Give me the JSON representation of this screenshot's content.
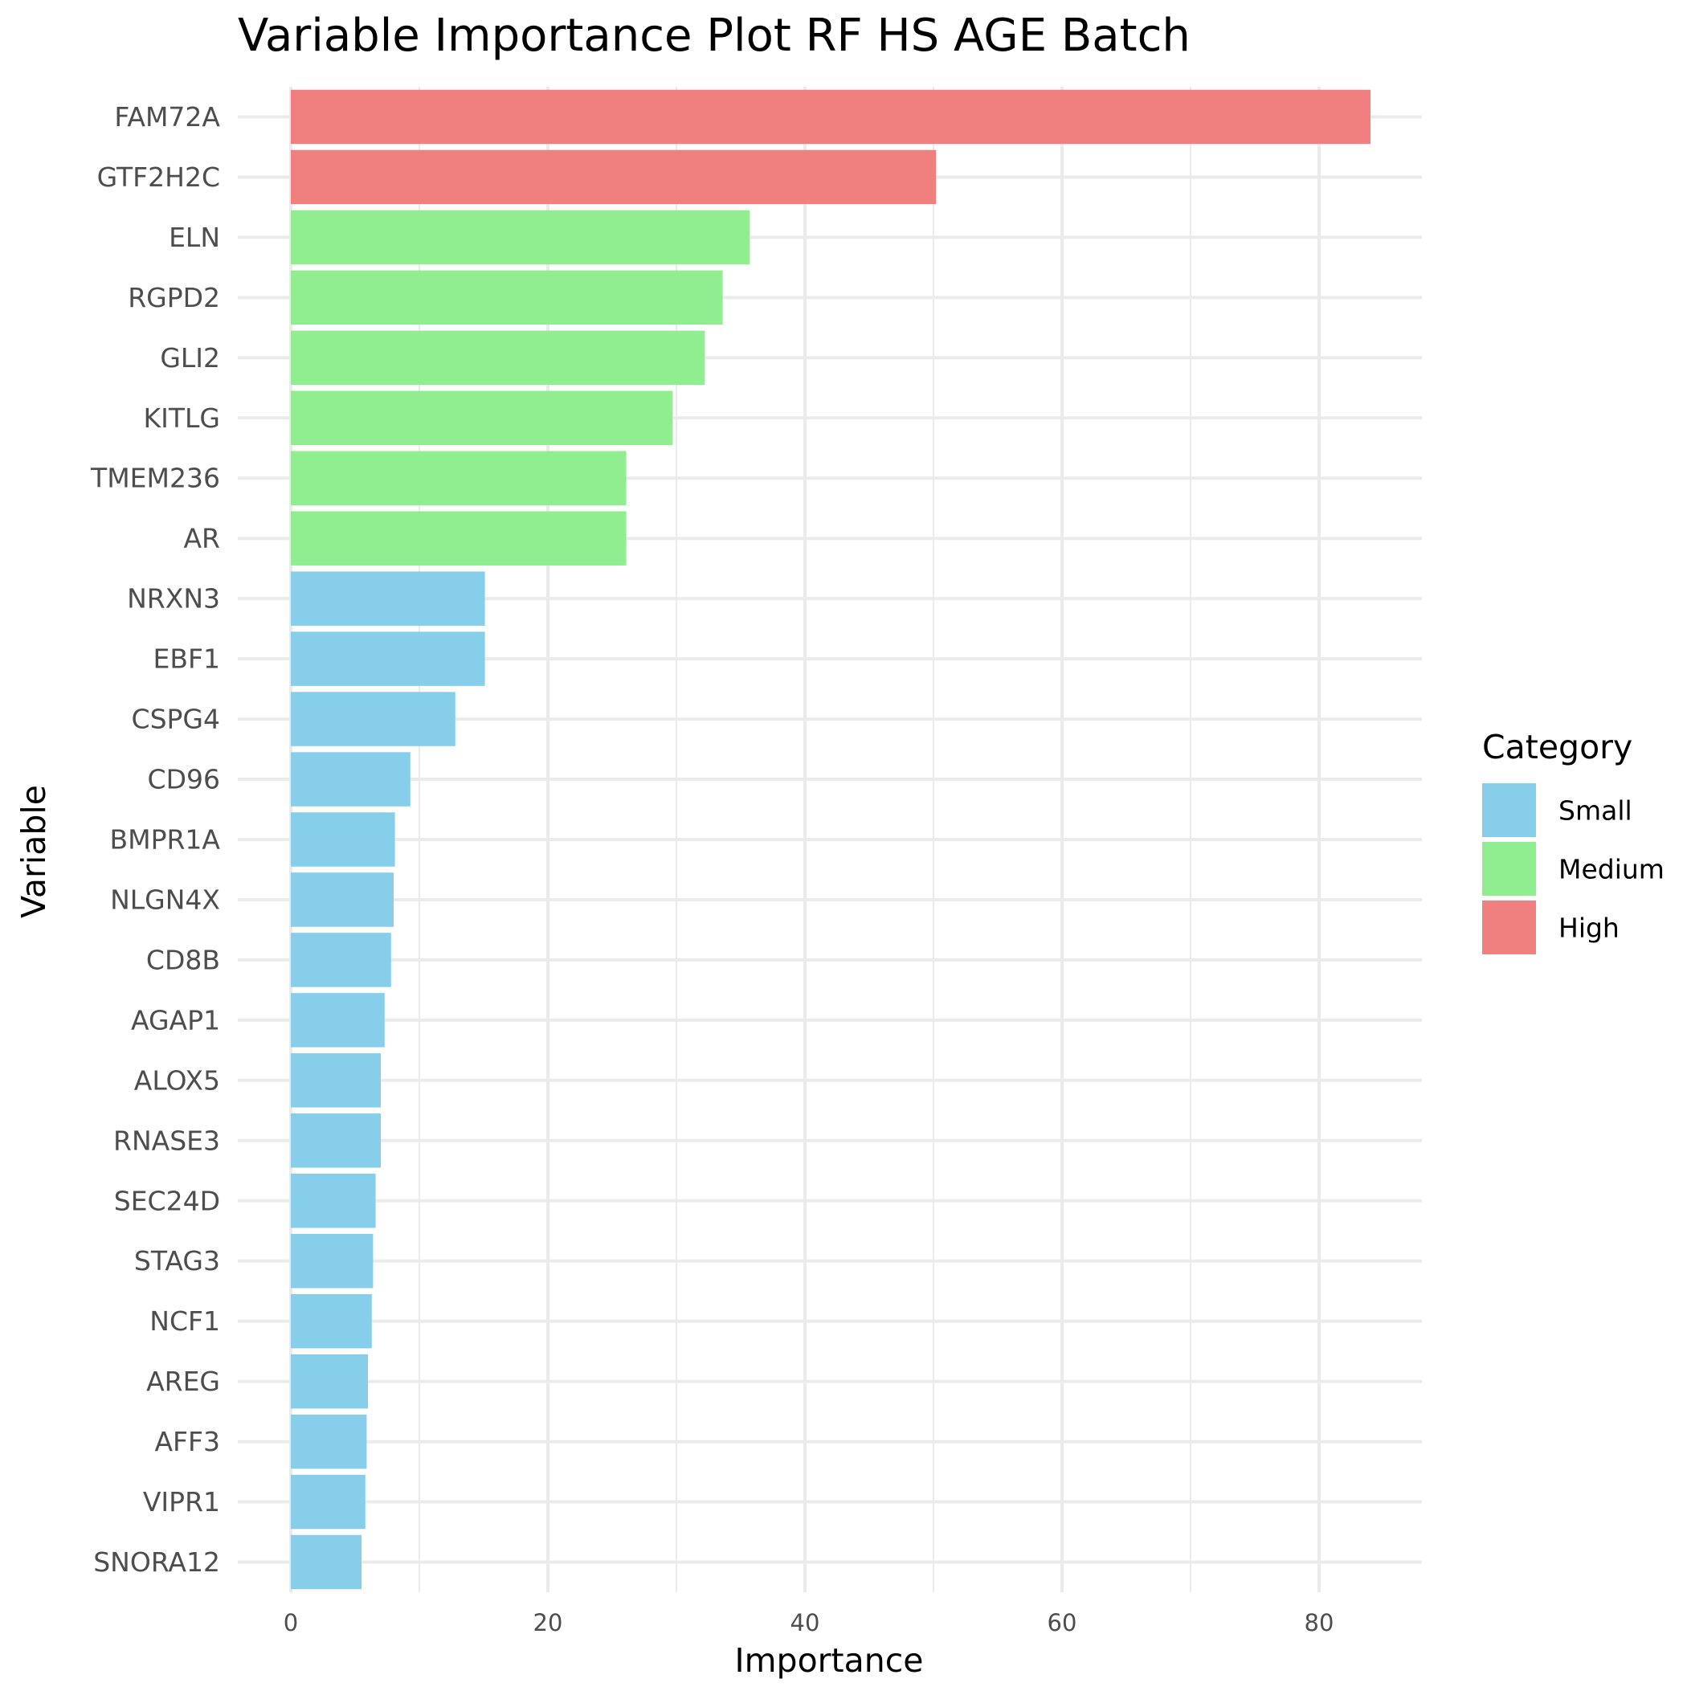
{
  "chart_data": {
    "type": "bar",
    "orientation": "horizontal",
    "title": "Variable Importance Plot RF HS AGE Batch",
    "xlabel": "Importance",
    "ylabel": "Variable",
    "xlim": [
      0,
      87.5
    ],
    "x_ticks": [
      0,
      20,
      40,
      60,
      80
    ],
    "grid": true,
    "legend": {
      "title": "Category",
      "placement": "right",
      "entries": [
        {
          "name": "Small",
          "color": "#87CEEB"
        },
        {
          "name": "Medium",
          "color": "#90EE90"
        },
        {
          "name": "High",
          "color": "#F08080"
        }
      ]
    },
    "categories": [
      "FAM72A",
      "GTF2H2C",
      "ELN",
      "RGPD2",
      "GLI2",
      "KITLG",
      "TMEM236",
      "AR",
      "NRXN3",
      "EBF1",
      "CSPG4",
      "CD96",
      "BMPR1A",
      "NLGN4X",
      "CD8B",
      "AGAP1",
      "ALOX5",
      "RNASE3",
      "SEC24D",
      "STAG3",
      "NCF1",
      "AREG",
      "AFF3",
      "VIPR1",
      "SNORA12"
    ],
    "values": [
      84.0,
      50.2,
      35.7,
      33.6,
      32.2,
      29.7,
      26.1,
      26.1,
      15.1,
      15.1,
      12.8,
      9.3,
      8.1,
      8.0,
      7.8,
      7.3,
      7.0,
      7.0,
      6.6,
      6.4,
      6.3,
      6.0,
      5.9,
      5.8,
      5.5
    ],
    "value_categories": [
      "High",
      "High",
      "Medium",
      "Medium",
      "Medium",
      "Medium",
      "Medium",
      "Medium",
      "Small",
      "Small",
      "Small",
      "Small",
      "Small",
      "Small",
      "Small",
      "Small",
      "Small",
      "Small",
      "Small",
      "Small",
      "Small",
      "Small",
      "Small",
      "Small",
      "Small"
    ]
  }
}
